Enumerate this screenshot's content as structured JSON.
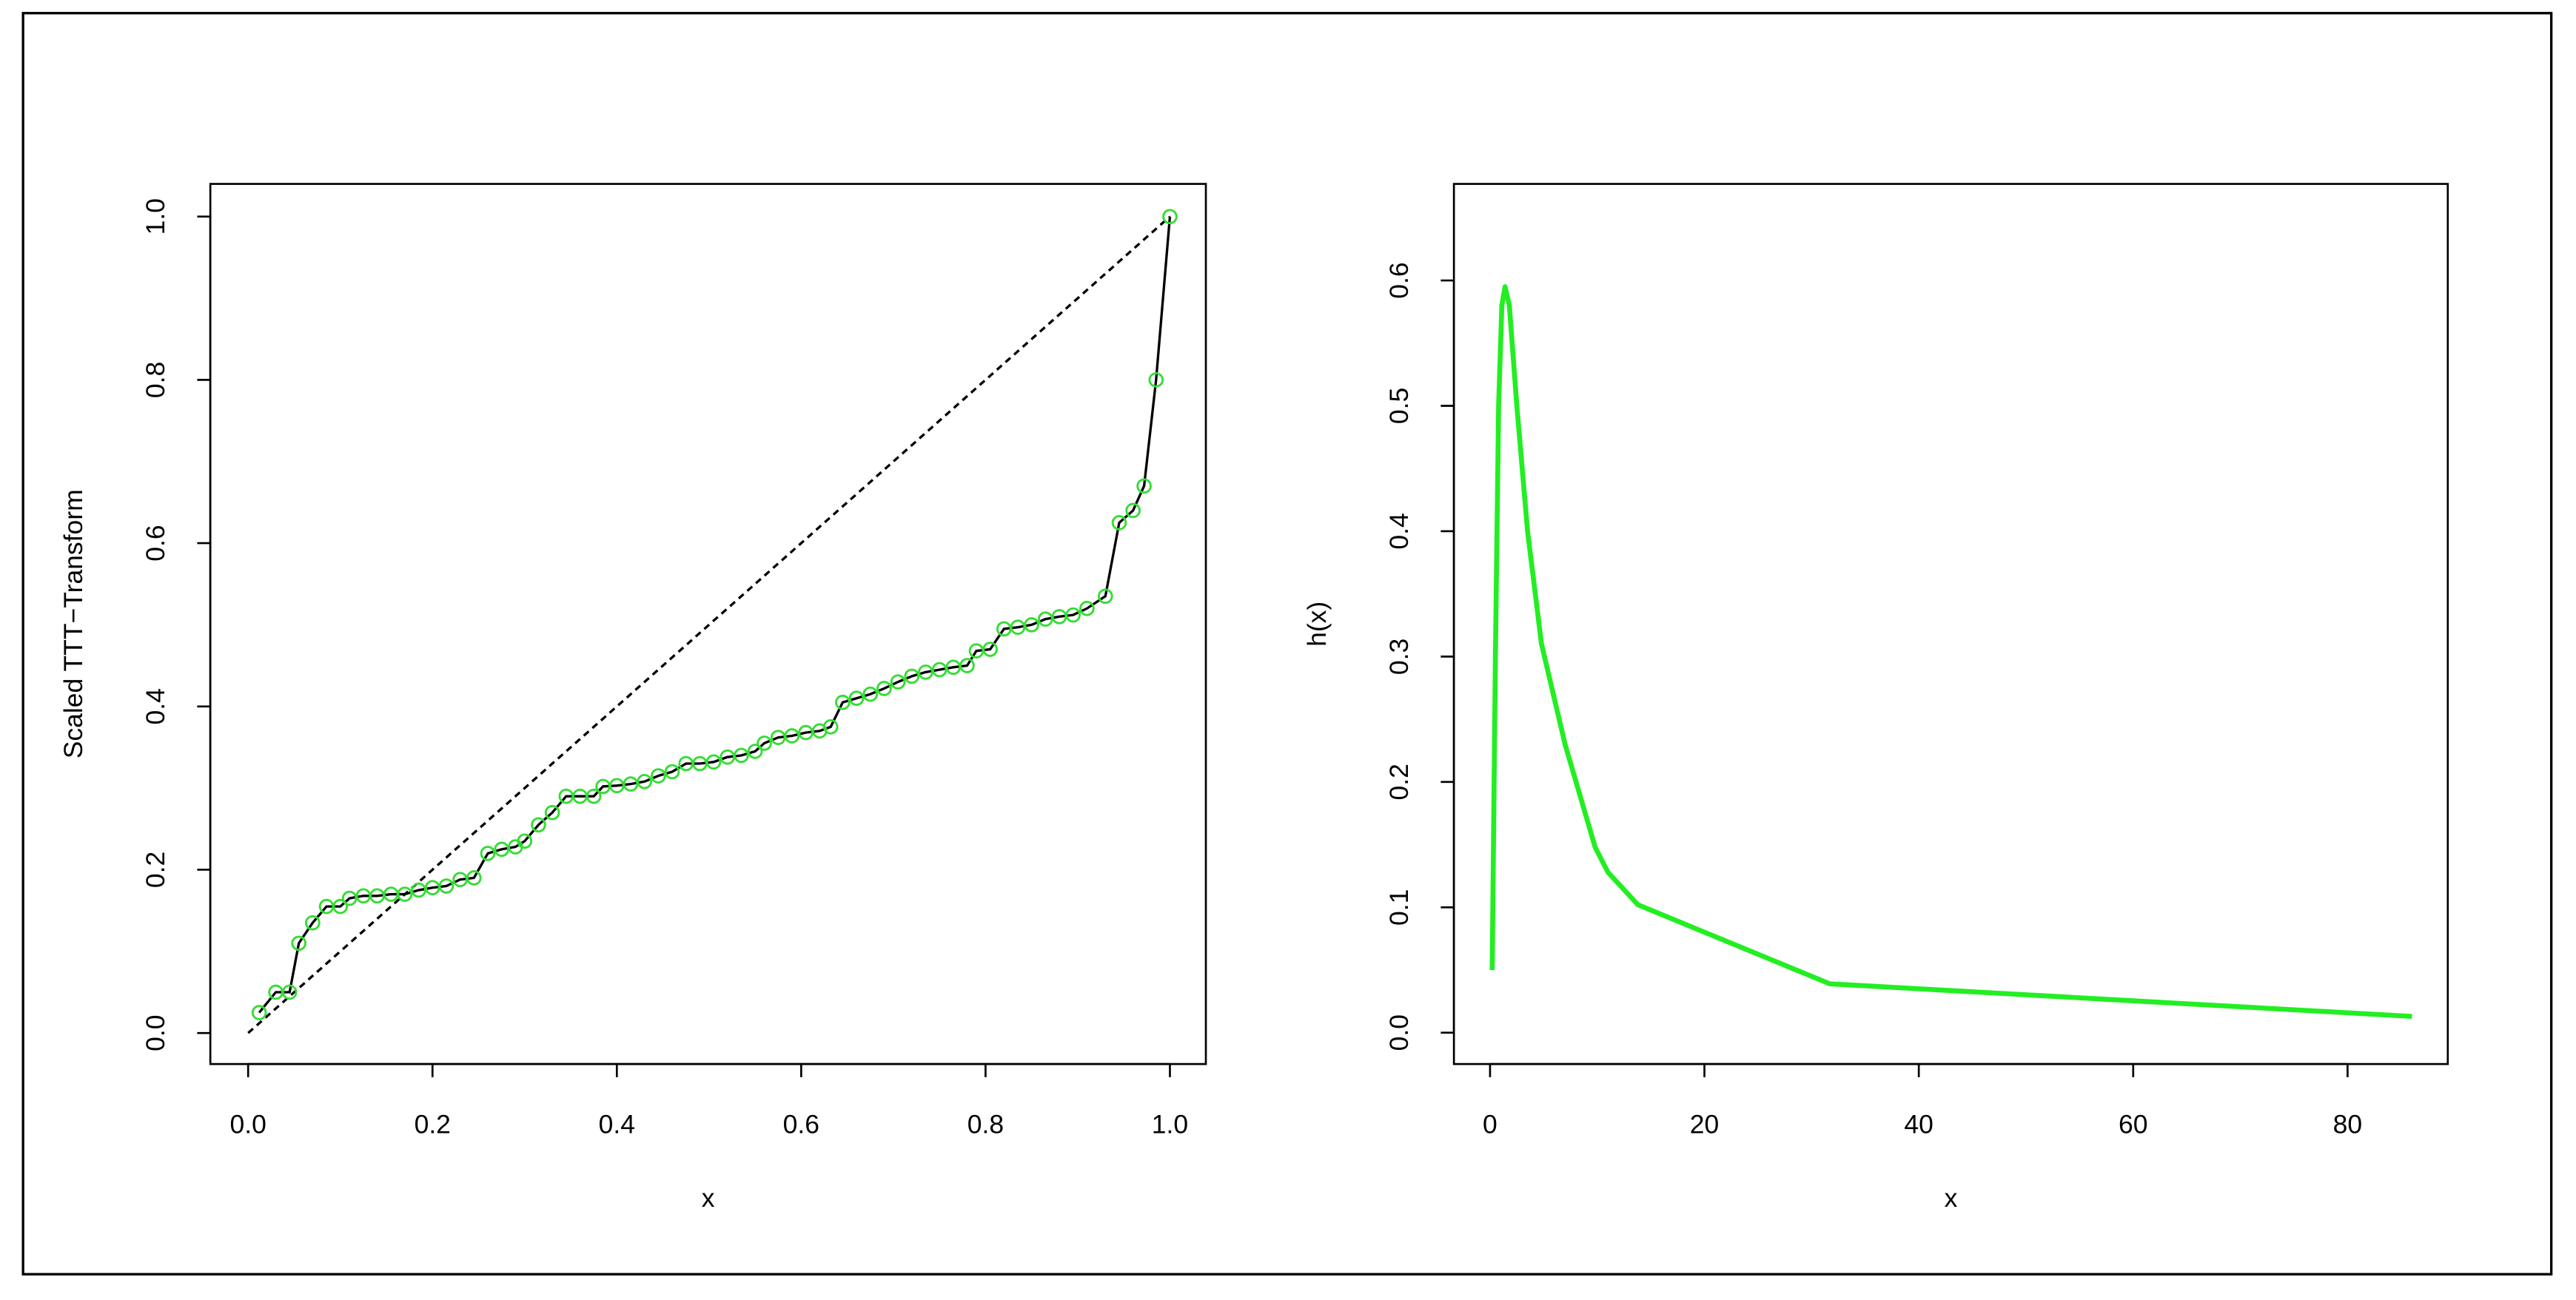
{
  "chart_data": [
    {
      "type": "scatter",
      "xlabel": "x",
      "ylabel": "Scaled TTT−Transform",
      "x": [
        0.012,
        0.03,
        0.045,
        0.055,
        0.07,
        0.085,
        0.1,
        0.11,
        0.125,
        0.14,
        0.155,
        0.17,
        0.185,
        0.2,
        0.215,
        0.23,
        0.245,
        0.26,
        0.275,
        0.29,
        0.3,
        0.315,
        0.33,
        0.345,
        0.36,
        0.375,
        0.385,
        0.4,
        0.415,
        0.43,
        0.445,
        0.46,
        0.475,
        0.49,
        0.505,
        0.52,
        0.535,
        0.55,
        0.56,
        0.575,
        0.59,
        0.605,
        0.62,
        0.632,
        0.645,
        0.66,
        0.675,
        0.69,
        0.705,
        0.72,
        0.735,
        0.75,
        0.765,
        0.78,
        0.79,
        0.805,
        0.82,
        0.835,
        0.85,
        0.865,
        0.88,
        0.895,
        0.91,
        0.93,
        0.945,
        0.96,
        0.972,
        0.985,
        1.0
      ],
      "y": [
        0.025,
        0.05,
        0.05,
        0.11,
        0.135,
        0.155,
        0.155,
        0.165,
        0.168,
        0.168,
        0.17,
        0.17,
        0.175,
        0.178,
        0.18,
        0.188,
        0.19,
        0.22,
        0.225,
        0.228,
        0.235,
        0.255,
        0.27,
        0.29,
        0.29,
        0.29,
        0.302,
        0.303,
        0.305,
        0.308,
        0.315,
        0.32,
        0.33,
        0.33,
        0.332,
        0.338,
        0.34,
        0.345,
        0.355,
        0.362,
        0.364,
        0.368,
        0.37,
        0.375,
        0.405,
        0.41,
        0.415,
        0.422,
        0.43,
        0.437,
        0.442,
        0.445,
        0.448,
        0.45,
        0.468,
        0.47,
        0.495,
        0.497,
        0.5,
        0.507,
        0.51,
        0.512,
        0.52,
        0.535,
        0.625,
        0.64,
        0.67,
        0.8,
        1.0
      ],
      "color": "#33dd33",
      "line_color": "#000000",
      "reference_line": {
        "x": [
          0,
          1
        ],
        "y": [
          0,
          1
        ],
        "color": "#000000",
        "dashed": true
      },
      "xlim": [
        -0.041,
        1.039
      ],
      "ylim": [
        -0.038,
        1.04
      ],
      "xticks": [
        {
          "value": 0,
          "label": "0.0"
        },
        0.2,
        0.4,
        0.6,
        0.8,
        {
          "value": 1,
          "label": "1.0"
        }
      ],
      "yticks": [
        {
          "value": 0,
          "label": "0.0"
        },
        0.2,
        0.4,
        0.6,
        0.8,
        {
          "value": 1,
          "label": "1.0"
        }
      ]
    },
    {
      "type": "line",
      "xlabel": "x",
      "ylabel": "h(x)",
      "x": [
        0.2,
        0.5,
        0.8,
        1.1,
        1.4,
        1.8,
        2.5,
        3.5,
        4.8,
        7,
        9.8,
        11,
        13.8,
        31.7,
        86
      ],
      "y": [
        0.05,
        0.3,
        0.5,
        0.58,
        0.595,
        0.58,
        0.5,
        0.4,
        0.31,
        0.23,
        0.148,
        0.128,
        0.102,
        0.039,
        0.013
      ],
      "color": "#22ee22",
      "xlim": [
        -3.37,
        89.35
      ],
      "ylim": [
        -0.025,
        0.677
      ],
      "xticks": [
        0,
        20,
        40,
        60,
        80
      ],
      "yticks": [
        {
          "value": 0,
          "label": "0.0"
        },
        0.1,
        0.2,
        0.3,
        0.4,
        0.5,
        0.6
      ]
    }
  ]
}
